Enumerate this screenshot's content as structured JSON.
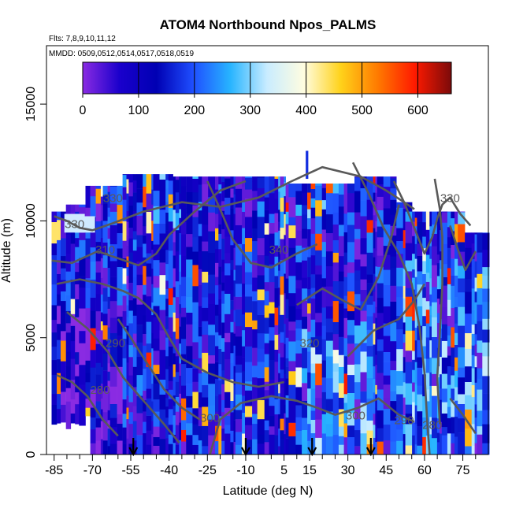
{
  "chart_data": {
    "type": "heatmap",
    "title": "ATOM4 Northbound Npos_PALMS",
    "annotation_flights": "Flts: 7,8,9,10,11,12",
    "annotation_dates": "MMDD: 0509,0512,0514,0517,0518,0519",
    "xlabel": "Latitude (deg N)",
    "ylabel": "Altitude (m)",
    "xlim": [
      -88,
      85
    ],
    "ylim": [
      0,
      17500
    ],
    "x_ticks": [
      -85,
      -70,
      -55,
      -40,
      -25,
      -10,
      5,
      15,
      30,
      45,
      60,
      75
    ],
    "x_minor_ticks": [
      -80,
      -75,
      -65,
      -60,
      -50,
      -45,
      -35,
      -30,
      -20,
      -15,
      -5,
      0,
      10,
      20,
      25,
      35,
      40,
      50,
      55,
      65,
      70,
      80
    ],
    "y_ticks": [
      0,
      5000,
      10000,
      15000
    ],
    "colorbar": {
      "min": 0,
      "max": 660,
      "ticks": [
        0,
        100,
        200,
        300,
        400,
        500,
        600
      ],
      "colors": [
        "#8a2be2",
        "#1a00cc",
        "#0000b3",
        "#1f4fff",
        "#27b4ff",
        "#c9ecff",
        "#fffde0",
        "#ffd21a",
        "#ff7a00",
        "#ff1a00",
        "#7b0a0a"
      ]
    },
    "contour_labels": [
      {
        "text": "330",
        "x": -77,
        "y": 9700
      },
      {
        "text": "330",
        "x": -62,
        "y": 10800
      },
      {
        "text": "310",
        "x": -65,
        "y": 8600
      },
      {
        "text": "340",
        "x": 3,
        "y": 8600
      },
      {
        "text": "320",
        "x": 15,
        "y": 4600
      },
      {
        "text": "330",
        "x": 70,
        "y": 10800
      },
      {
        "text": "290",
        "x": -61,
        "y": 4600
      },
      {
        "text": "280",
        "x": -67,
        "y": 2600
      },
      {
        "text": "300",
        "x": -24,
        "y": 1400
      },
      {
        "text": "300",
        "x": 33,
        "y": 1500
      },
      {
        "text": "290",
        "x": 52,
        "y": 1300
      },
      {
        "text": "280",
        "x": 63,
        "y": 1100
      }
    ],
    "flight_markers_lat": [
      -54,
      -10,
      16,
      39
    ]
  }
}
